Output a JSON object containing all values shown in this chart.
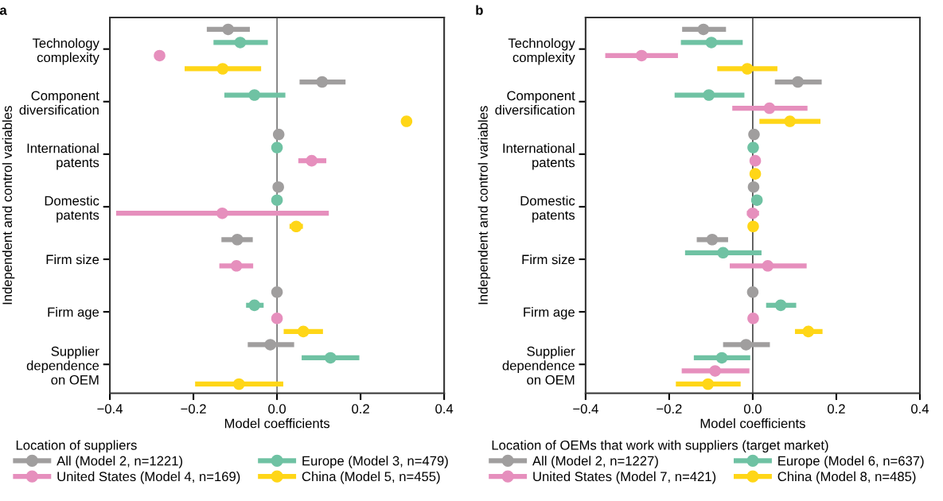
{
  "chart_data": [
    {
      "type": "scatter",
      "orientation": "horizontal",
      "title": "a",
      "xlabel": "Model coefficients",
      "ylabel": "Independent and control variables",
      "legend_title": "Location of suppliers",
      "legend": "bottom",
      "marker": "circle",
      "grid": false,
      "categories": [
        "Technology\ncomplexity",
        "Component\ndiversification",
        "International\npatents",
        "Domestic\npatents",
        "Firm size",
        "Firm age",
        "Supplier\ndependence\non OEM"
      ],
      "xlim": [
        -0.4,
        0.4
      ],
      "xticks": [
        {
          "value": -0.4,
          "label": "−0.4"
        },
        {
          "value": -0.2,
          "label": "−0.2"
        },
        {
          "value": 0.0,
          "label": "0.0"
        },
        {
          "value": 0.2,
          "label": "0.2"
        },
        {
          "value": 0.4,
          "label": "0.4"
        }
      ],
      "ref_lines": [
        {
          "axis": "x",
          "value": 0,
          "color": "#555555",
          "line_style": "solid"
        }
      ],
      "series": [
        {
          "name": "All (Model 2, n=1221)",
          "color": "#a09e9e",
          "values": [
            -0.117,
            0.108,
            0.004,
            0.003,
            -0.095,
            0.0,
            -0.016
          ],
          "errors": [
            [
              -0.168,
              -0.065
            ],
            [
              0.054,
              0.164
            ],
            null,
            null,
            [
              -0.133,
              -0.058
            ],
            null,
            [
              -0.07,
              0.041
            ]
          ]
        },
        {
          "name": "Europe (Model 3, n=479)",
          "color": "#6fc2a3",
          "values": [
            -0.088,
            -0.054,
            0.0,
            0.0,
            null,
            -0.054,
            0.128
          ],
          "errors": [
            [
              -0.152,
              -0.022
            ],
            [
              -0.126,
              0.02
            ],
            null,
            null,
            null,
            [
              -0.074,
              -0.032
            ],
            [
              0.059,
              0.197
            ]
          ]
        },
        {
          "name": "United States (Model 4, n=169)",
          "color": "#e68fbd",
          "values": [
            -0.281,
            null,
            0.083,
            -0.131,
            -0.097,
            0.0,
            null
          ],
          "errors": [
            null,
            null,
            [
              0.051,
              0.118
            ],
            [
              -0.385,
              0.124
            ],
            [
              -0.138,
              -0.057
            ],
            null,
            null
          ]
        },
        {
          "name": "China (Model 5, n=455)",
          "color": "#ffd617",
          "values": [
            -0.13,
            0.31,
            null,
            0.046,
            null,
            0.063,
            -0.091
          ],
          "errors": [
            [
              -0.221,
              -0.038
            ],
            null,
            null,
            [
              0.03,
              0.062
            ],
            null,
            [
              0.016,
              0.11
            ],
            [
              -0.196,
              0.015
            ]
          ]
        }
      ]
    },
    {
      "type": "scatter",
      "orientation": "horizontal",
      "title": "b",
      "xlabel": "Model coefficients",
      "ylabel": "Independent and control variables",
      "legend_title": "Location of OEMs that work with suppliers (target market)",
      "legend": "bottom",
      "marker": "circle",
      "grid": false,
      "categories": [
        "Technology\ncomplexity",
        "Component\ndiversification",
        "International\npatents",
        "Domestic\npatents",
        "Firm size",
        "Firm age",
        "Supplier\ndependence\non OEM"
      ],
      "xlim": [
        -0.4,
        0.4
      ],
      "xticks": [
        {
          "value": -0.4,
          "label": "−0.4"
        },
        {
          "value": -0.2,
          "label": "−0.2"
        },
        {
          "value": 0.0,
          "label": "0.0"
        },
        {
          "value": 0.2,
          "label": "0.2"
        },
        {
          "value": 0.4,
          "label": "0.4"
        }
      ],
      "ref_lines": [
        {
          "axis": "x",
          "value": 0,
          "color": "#222222",
          "line_style": "solid"
        }
      ],
      "series": [
        {
          "name": "All (Model 2, n=1227)",
          "color": "#a09e9e",
          "values": [
            -0.118,
            0.108,
            0.003,
            0.002,
            -0.097,
            0.0,
            -0.016
          ],
          "errors": [
            [
              -0.169,
              -0.064
            ],
            [
              0.053,
              0.165
            ],
            null,
            null,
            [
              -0.134,
              -0.059
            ],
            null,
            [
              -0.071,
              0.041
            ]
          ]
        },
        {
          "name": "Europe (Model 6, n=637)",
          "color": "#6fc2a3",
          "values": [
            -0.099,
            -0.105,
            0.001,
            0.01,
            -0.071,
            0.067,
            -0.074
          ],
          "errors": [
            [
              -0.172,
              -0.024
            ],
            [
              -0.187,
              -0.02
            ],
            null,
            null,
            [
              -0.162,
              0.021
            ],
            [
              0.032,
              0.104
            ],
            [
              -0.141,
              -0.006
            ]
          ]
        },
        {
          "name": "United States (Model 7, n=421)",
          "color": "#e68fbd",
          "values": [
            -0.266,
            0.04,
            0.006,
            0.0,
            0.036,
            0.001,
            -0.09
          ],
          "errors": [
            [
              -0.353,
              -0.179
            ],
            [
              -0.049,
              0.131
            ],
            null,
            [
              -0.014,
              0.015
            ],
            [
              -0.055,
              0.129
            ],
            null,
            [
              -0.17,
              -0.008
            ]
          ]
        },
        {
          "name": "China (Model 8, n=485)",
          "color": "#ffd617",
          "values": [
            -0.013,
            0.089,
            0.006,
            0.001,
            null,
            0.133,
            -0.107
          ],
          "errors": [
            [
              -0.085,
              0.059
            ],
            [
              0.016,
              0.162
            ],
            null,
            null,
            null,
            [
              0.101,
              0.167
            ],
            [
              -0.184,
              -0.029
            ]
          ]
        }
      ]
    }
  ]
}
